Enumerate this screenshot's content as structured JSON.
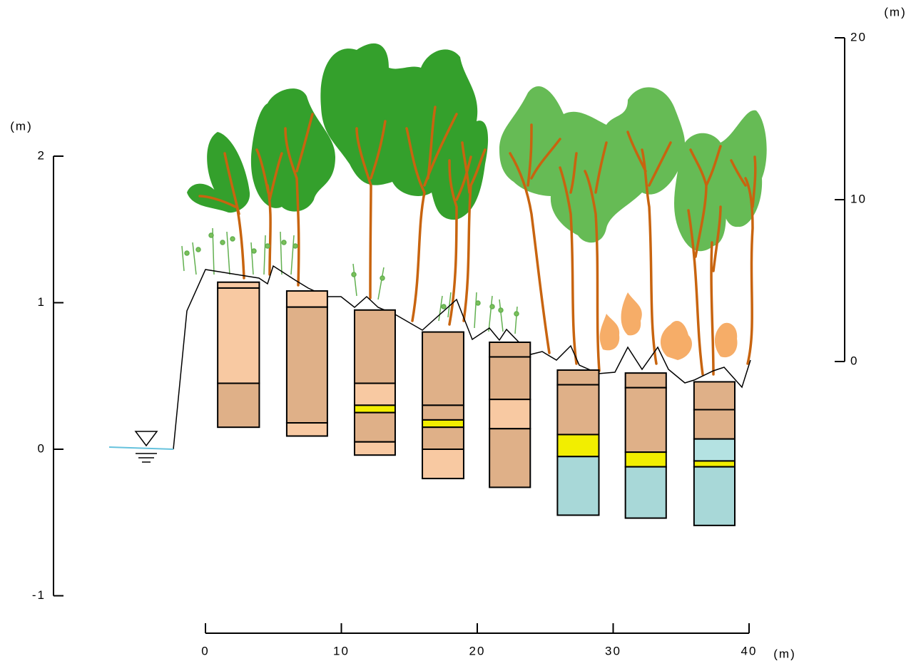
{
  "left_axis": {
    "unit_label": "(m)",
    "lim": [
      -1,
      2
    ],
    "ticks": [
      -1,
      0,
      1,
      2
    ]
  },
  "bottom_axis": {
    "unit_label": "(m)",
    "lim": [
      0,
      40
    ],
    "ticks": [
      0,
      10,
      20,
      30,
      40
    ]
  },
  "right_axis": {
    "unit_label": "(m)",
    "lim": [
      0,
      20
    ],
    "ticks": [
      0,
      10,
      20
    ]
  },
  "soil_cores": [
    {
      "x": [
        0.9,
        3.96
      ],
      "boundaries": [
        1.14,
        1.1,
        0.45,
        0.15
      ],
      "colors": [
        "#f8c9a2",
        "#f8c9a2",
        "#dfb088"
      ]
    },
    {
      "x": [
        5.98,
        8.97
      ],
      "boundaries": [
        1.08,
        0.97,
        0.18,
        0.09
      ],
      "colors": [
        "#f8c9a2",
        "#dfb088",
        "#f8c9a2"
      ]
    },
    {
      "x": [
        10.97,
        13.96
      ],
      "boundaries": [
        0.95,
        0.45,
        0.3,
        0.25,
        0.05,
        -0.04
      ],
      "colors": [
        "#dfb088",
        "#f8c9a2",
        "#f2ee00",
        "#dfb088",
        "#f8c9a2"
      ]
    },
    {
      "x": [
        15.96,
        19.0
      ],
      "boundaries": [
        0.8,
        0.3,
        0.2,
        0.15,
        0.0,
        -0.2
      ],
      "colors": [
        "#dfb088",
        "#dfb088",
        "#f2ee00",
        "#dfb088",
        "#f8c9a2"
      ]
    },
    {
      "x": [
        20.9,
        23.9
      ],
      "boundaries": [
        0.73,
        0.63,
        0.34,
        0.14,
        -0.26
      ],
      "colors": [
        "#dfb088",
        "#dfb088",
        "#f8c9a2",
        "#dfb088"
      ]
    },
    {
      "x": [
        25.9,
        28.95
      ],
      "boundaries": [
        0.54,
        0.44,
        0.1,
        -0.05,
        -0.45
      ],
      "colors": [
        "#dfb088",
        "#dfb088",
        "#f2ee00",
        "#a8d8d8"
      ]
    },
    {
      "x": [
        30.9,
        33.9
      ],
      "boundaries": [
        0.52,
        0.42,
        -0.02,
        -0.12,
        -0.47
      ],
      "colors": [
        "#dfb088",
        "#dfb088",
        "#f2ee00",
        "#a8d8d8"
      ]
    },
    {
      "x": [
        35.95,
        38.95
      ],
      "boundaries": [
        0.46,
        0.27,
        0.07,
        -0.08,
        -0.12,
        -0.52
      ],
      "colors": [
        "#dfb088",
        "#dfb088",
        "#b4e2e2",
        "#f2ee00",
        "#a8d8d8"
      ]
    }
  ]
}
